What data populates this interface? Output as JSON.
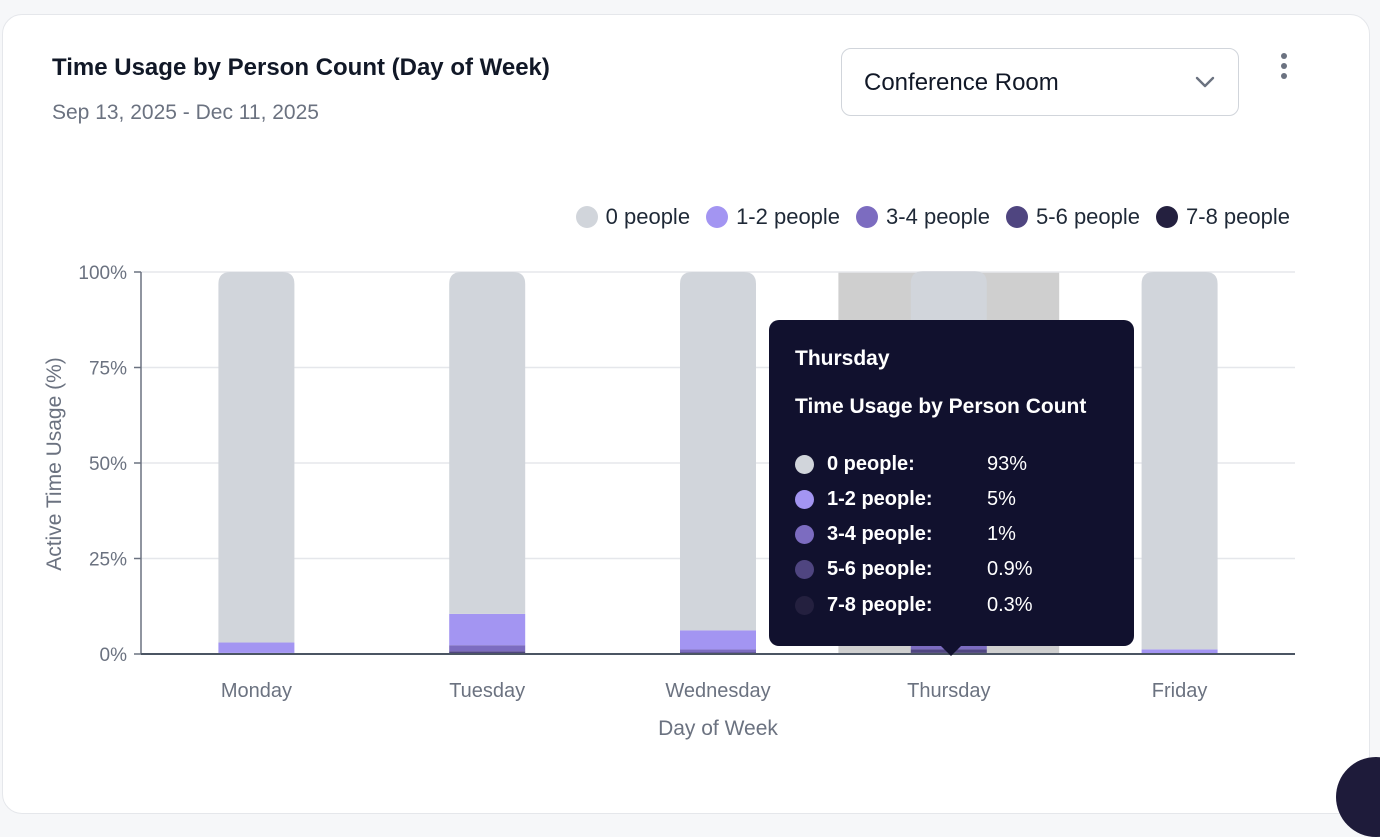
{
  "card": {
    "title": "Time Usage by Person Count (Day of Week)",
    "date_range": "Sep 13, 2025 - Dec 11, 2025"
  },
  "room_select": {
    "selected": "Conference Room"
  },
  "legend": [
    {
      "label": "0 people",
      "color": "#d1d5db"
    },
    {
      "label": "1-2 people",
      "color": "#a395f2"
    },
    {
      "label": "3-4 people",
      "color": "#7c6cc0"
    },
    {
      "label": "5-6 people",
      "color": "#4f4580"
    },
    {
      "label": "7-8 people",
      "color": "#24203f"
    }
  ],
  "tooltip": {
    "day": "Thursday",
    "subtitle": "Time Usage by Person Count",
    "rows": [
      {
        "label": "0 people:",
        "value": "93%",
        "color": "#d1d5db"
      },
      {
        "label": "1-2 people:",
        "value": "5%",
        "color": "#a395f2"
      },
      {
        "label": "3-4 people:",
        "value": "1%",
        "color": "#7c6cc0"
      },
      {
        "label": "5-6 people:",
        "value": "0.9%",
        "color": "#4f4580"
      },
      {
        "label": "7-8 people:",
        "value": "0.3%",
        "color": "#24203f"
      }
    ]
  },
  "chart_data": {
    "type": "bar",
    "stacked": true,
    "xlabel": "Day of Week",
    "ylabel": "Active Time Usage (%)",
    "ylim": [
      0,
      100
    ],
    "yticks": [
      "0%",
      "25%",
      "50%",
      "75%",
      "100%"
    ],
    "categories": [
      "Monday",
      "Tuesday",
      "Wednesday",
      "Thursday",
      "Friday"
    ],
    "highlighted_category": "Thursday",
    "grid": true,
    "legend_position": "top-right",
    "series": [
      {
        "name": "7-8 people",
        "color": "#24203f",
        "values": [
          0,
          0.2,
          0.1,
          0.3,
          0
        ]
      },
      {
        "name": "5-6 people",
        "color": "#4f4580",
        "values": [
          0,
          0.5,
          0.3,
          0.9,
          0
        ]
      },
      {
        "name": "3-4 people",
        "color": "#7c6cc0",
        "values": [
          0.3,
          1.6,
          0.8,
          1,
          0.2
        ]
      },
      {
        "name": "1-2 people",
        "color": "#a395f2",
        "values": [
          2.7,
          8.2,
          5,
          5,
          1.0
        ]
      },
      {
        "name": "0 people",
        "color": "#d1d5db",
        "values": [
          97,
          89.5,
          93.8,
          93,
          98.8
        ]
      }
    ]
  }
}
